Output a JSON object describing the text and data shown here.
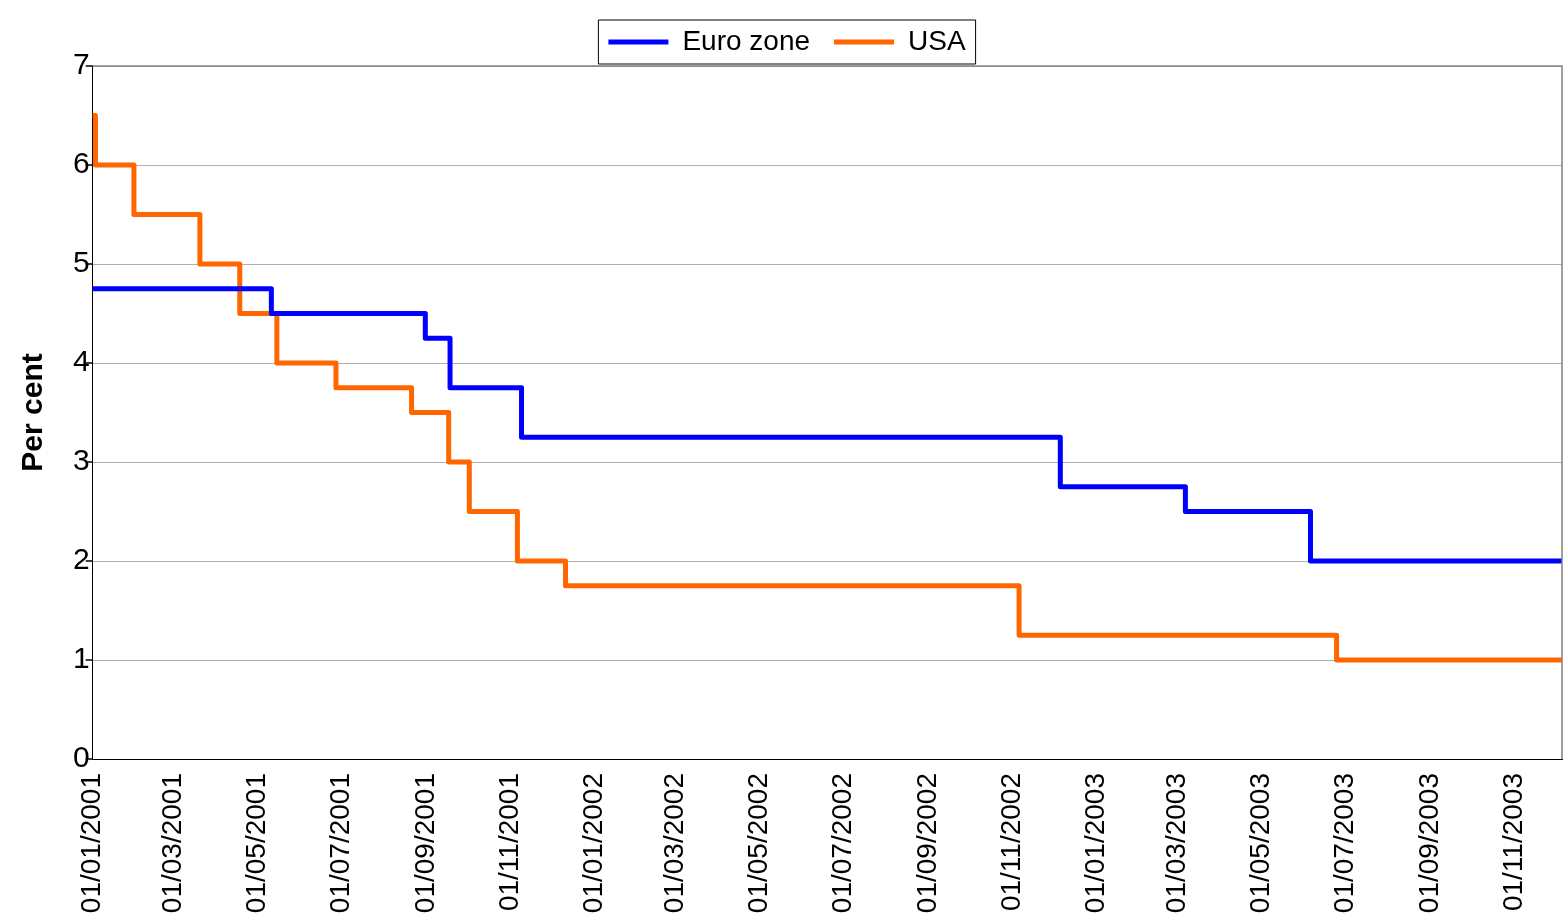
{
  "chart_data": {
    "type": "step",
    "ylabel": "Per cent",
    "xlim": [
      "2001-01-01",
      "2003-12-06"
    ],
    "ylim": [
      0,
      7
    ],
    "yticks": [
      0,
      1,
      2,
      3,
      4,
      5,
      6,
      7
    ],
    "xticks": [
      {
        "value": "2001-01-01",
        "label": "01/01/2001"
      },
      {
        "value": "2001-03-01",
        "label": "01/03/2001"
      },
      {
        "value": "2001-05-01",
        "label": "01/05/2001"
      },
      {
        "value": "2001-07-01",
        "label": "01/07/2001"
      },
      {
        "value": "2001-09-01",
        "label": "01/09/2001"
      },
      {
        "value": "2001-11-01",
        "label": "01/11/2001"
      },
      {
        "value": "2002-01-01",
        "label": "01/01/2002"
      },
      {
        "value": "2002-03-01",
        "label": "01/03/2002"
      },
      {
        "value": "2002-05-01",
        "label": "01/05/2002"
      },
      {
        "value": "2002-07-01",
        "label": "01/07/2002"
      },
      {
        "value": "2002-09-01",
        "label": "01/09/2002"
      },
      {
        "value": "2002-11-01",
        "label": "01/11/2002"
      },
      {
        "value": "2003-01-01",
        "label": "01/01/2003"
      },
      {
        "value": "2003-03-01",
        "label": "01/03/2003"
      },
      {
        "value": "2003-05-01",
        "label": "01/05/2003"
      },
      {
        "value": "2003-07-01",
        "label": "01/07/2003"
      },
      {
        "value": "2003-09-01",
        "label": "01/09/2003"
      },
      {
        "value": "2003-11-01",
        "label": "01/11/2003"
      }
    ],
    "series": [
      {
        "name": "Euro zone",
        "color": "#0000ff",
        "x": [
          "2001-01-01",
          "2001-05-11",
          "2001-08-31",
          "2001-09-18",
          "2001-11-09",
          "2002-12-06",
          "2003-03-07",
          "2003-06-06",
          "2003-12-06"
        ],
        "values": [
          4.75,
          4.5,
          4.25,
          3.75,
          3.25,
          2.75,
          2.5,
          2.0,
          2.0
        ]
      },
      {
        "name": "USA",
        "color": "#ff6600",
        "x": [
          "2001-01-01",
          "2001-01-03",
          "2001-01-31",
          "2001-03-20",
          "2001-04-18",
          "2001-05-15",
          "2001-06-27",
          "2001-08-21",
          "2001-09-17",
          "2001-10-02",
          "2001-11-06",
          "2001-12-11",
          "2002-11-06",
          "2003-06-25",
          "2003-12-06"
        ],
        "values": [
          6.5,
          6.0,
          5.5,
          5.0,
          4.5,
          4.0,
          3.75,
          3.5,
          3.0,
          2.5,
          2.0,
          1.75,
          1.25,
          1.0,
          1.0
        ]
      }
    ],
    "grid": "y",
    "legend": "top",
    "line_style": "solid",
    "marker": "none"
  }
}
